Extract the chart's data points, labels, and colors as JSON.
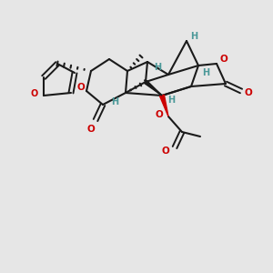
{
  "bg_color": "#e6e6e6",
  "bond_color": "#1a1a1a",
  "teal_color": "#4a9898",
  "red_color": "#cc0000",
  "figsize": [
    3.0,
    3.0
  ],
  "dpi": 100,
  "xlim": [
    0,
    300
  ],
  "ylim": [
    0,
    300
  ]
}
